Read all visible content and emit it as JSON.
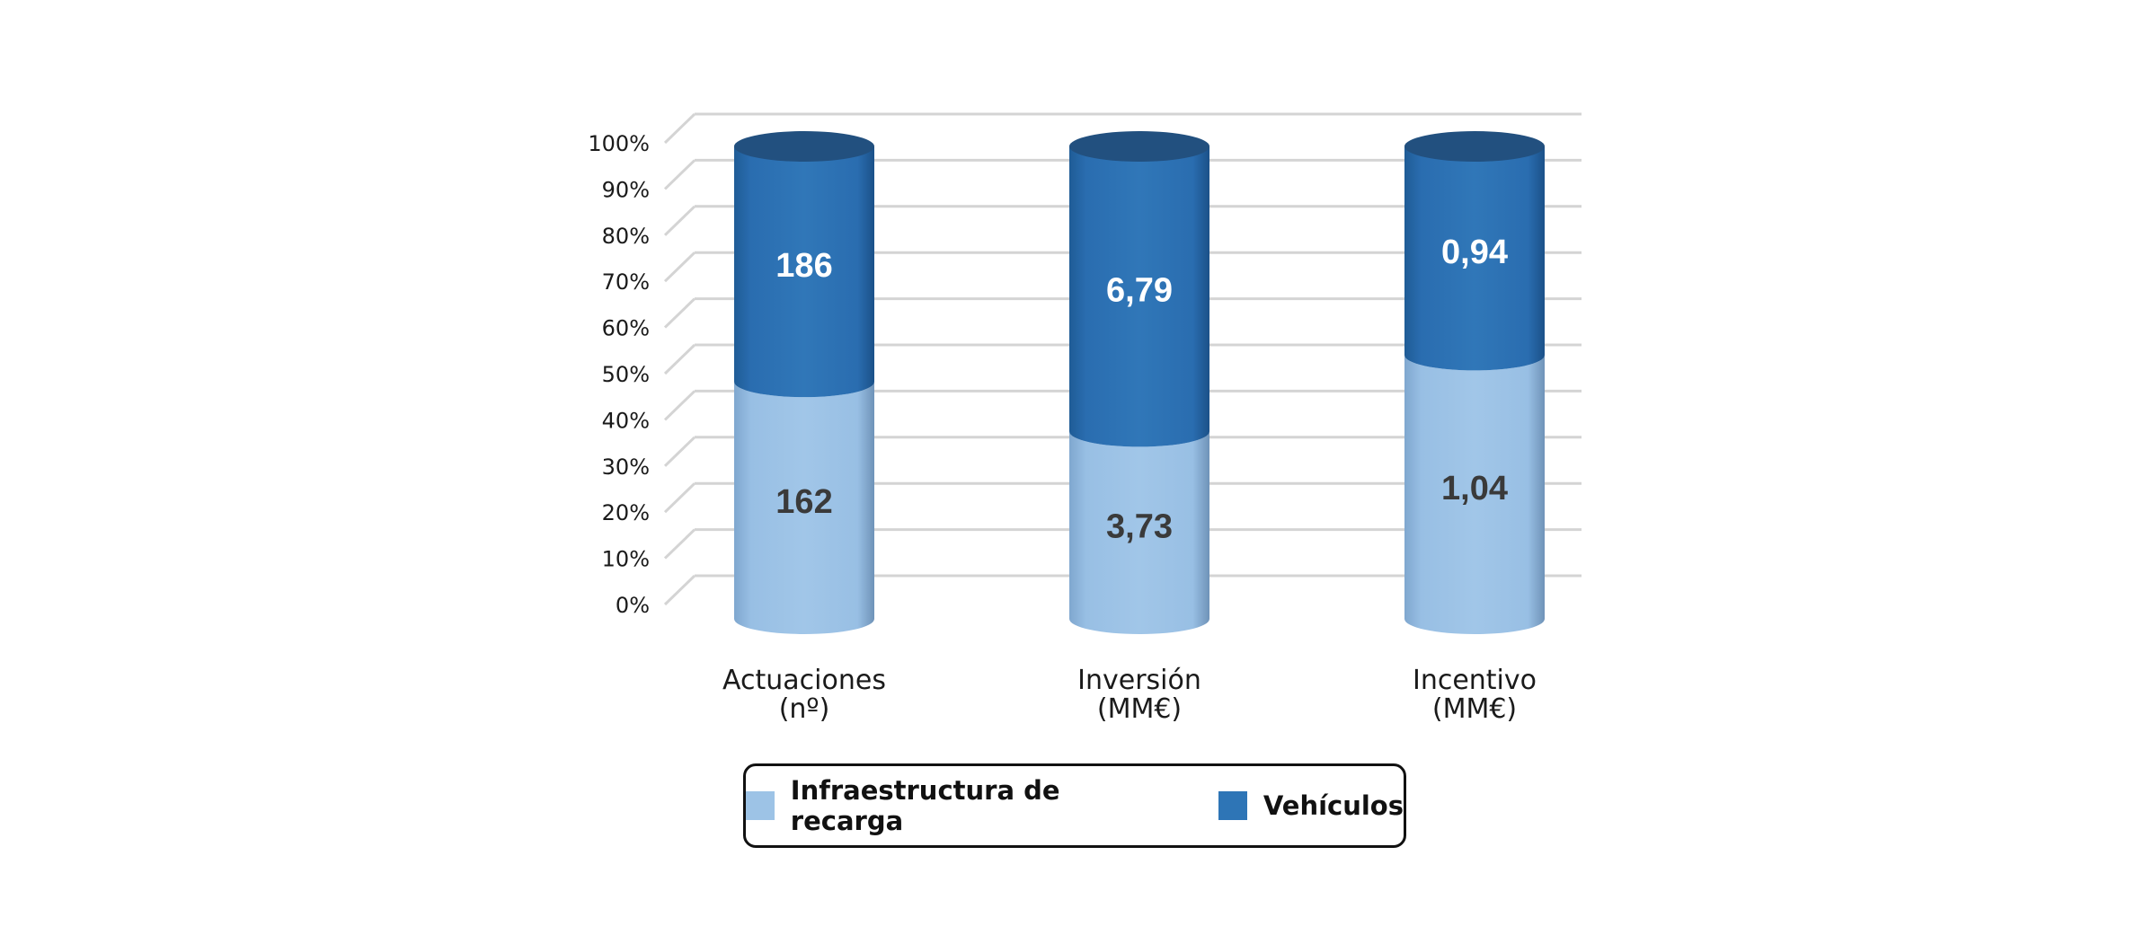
{
  "chart_data": {
    "type": "bar",
    "stacked": "percent",
    "categories": [
      [
        "Actuaciones",
        "(nº)"
      ],
      [
        "Inversión",
        "(MM€)"
      ],
      [
        "Incentivo",
        "(MM€)"
      ]
    ],
    "series": [
      {
        "name": "Infraestructura de recarga",
        "values": [
          162,
          3.73,
          1.04
        ],
        "labels": [
          "162",
          "3,73",
          "1,04"
        ],
        "color": "#9dc3e6"
      },
      {
        "name": "Vehículos",
        "values": [
          186,
          6.79,
          0.94
        ],
        "labels": [
          "186",
          "6,79",
          "0,94"
        ],
        "color": "#2e75b6"
      }
    ],
    "yticks": [
      "0%",
      "10%",
      "20%",
      "30%",
      "40%",
      "50%",
      "60%",
      "70%",
      "80%",
      "90%",
      "100%"
    ],
    "ylim": [
      0,
      100
    ],
    "grid": true,
    "legend_position": "bottom"
  }
}
